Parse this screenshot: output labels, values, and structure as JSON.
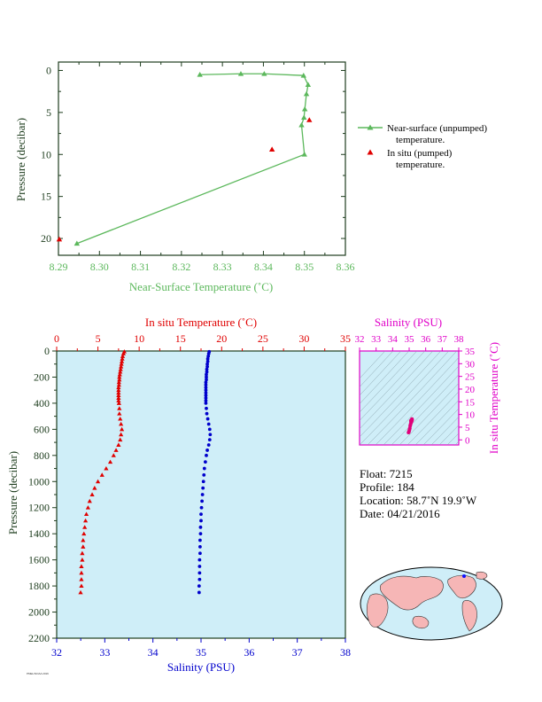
{
  "chart_data": [
    {
      "type": "line",
      "xlabel": "Near-Surface Temperature (˚C)",
      "ylabel": "Pressure (decibar)",
      "xlim": [
        8.29,
        8.36
      ],
      "ylim": [
        22,
        -1
      ],
      "xticks": [
        "8.29",
        "8.30",
        "8.31",
        "8.32",
        "8.33",
        "8.34",
        "8.35",
        "8.36"
      ],
      "yticks": [
        "0",
        "5",
        "10",
        "15",
        "20"
      ],
      "legend": [
        {
          "line1": "Near-surface (unpumped)",
          "line2": "temperature.",
          "color": "#5cb85c",
          "marker": "triangle"
        },
        {
          "line1": "In situ (pumped)",
          "line2": "temperature.",
          "color": "#e00000",
          "marker": "triangle"
        }
      ],
      "series": [
        {
          "name": "Near-surface (unpumped) temperature.",
          "color": "#5cb85c",
          "x": [
            8.3245,
            8.3345,
            8.3402,
            8.3498,
            8.3509,
            8.3505,
            8.3501,
            8.3499,
            8.3493,
            8.35,
            8.2945
          ],
          "y": [
            0.5,
            0.4,
            0.4,
            0.6,
            1.7,
            2.8,
            4.6,
            5.6,
            6.5,
            10.0,
            20.6
          ]
        },
        {
          "name": "In situ (pumped) temperature.",
          "color": "#e00000",
          "x": [
            8.3512,
            8.3421,
            8.2902
          ],
          "y": [
            5.9,
            9.4,
            20.1
          ]
        }
      ]
    },
    {
      "type": "scatter",
      "title_top": "In situ Temperature (˚C)",
      "xlabel": "Salinity (PSU)",
      "ylabel": "Pressure (decibar)",
      "temp_lim": [
        0,
        35
      ],
      "sal_lim": [
        32,
        38
      ],
      "ylim": [
        2200,
        0
      ],
      "temp_ticks": [
        "0",
        "5",
        "10",
        "15",
        "20",
        "25",
        "30",
        "35"
      ],
      "sal_ticks": [
        "32",
        "33",
        "34",
        "35",
        "36",
        "37",
        "38"
      ],
      "pressure_ticks": [
        "0",
        "200",
        "400",
        "600",
        "800",
        "1000",
        "1200",
        "1400",
        "1600",
        "1800",
        "2000",
        "2200"
      ],
      "background": "#cfeef8",
      "temperature": {
        "color": "#e00000",
        "pressure": [
          5,
          20,
          40,
          60,
          80,
          100,
          120,
          140,
          160,
          180,
          200,
          220,
          240,
          260,
          280,
          300,
          320,
          340,
          360,
          380,
          400,
          440,
          480,
          520,
          560,
          600,
          640,
          680,
          720,
          760,
          800,
          850,
          900,
          950,
          1000,
          1050,
          1100,
          1150,
          1200,
          1250,
          1300,
          1350,
          1400,
          1450,
          1500,
          1550,
          1600,
          1650,
          1700,
          1750,
          1800,
          1850
        ],
        "values": [
          8.2,
          8.1,
          8.0,
          7.95,
          7.9,
          7.85,
          7.8,
          7.75,
          7.7,
          7.65,
          7.6,
          7.6,
          7.55,
          7.55,
          7.5,
          7.5,
          7.5,
          7.5,
          7.5,
          7.5,
          7.55,
          7.6,
          7.6,
          7.7,
          7.8,
          7.9,
          7.8,
          7.7,
          7.5,
          7.2,
          6.9,
          6.5,
          6.0,
          5.5,
          5.0,
          4.6,
          4.3,
          4.0,
          3.8,
          3.6,
          3.5,
          3.4,
          3.3,
          3.2,
          3.2,
          3.1,
          3.1,
          3.0,
          3.0,
          3.0,
          3.0,
          2.9
        ]
      },
      "salinity": {
        "color": "#0000cc",
        "pressure": [
          5,
          20,
          40,
          60,
          80,
          100,
          120,
          140,
          160,
          180,
          200,
          220,
          240,
          260,
          280,
          300,
          320,
          340,
          360,
          380,
          400,
          440,
          480,
          520,
          560,
          600,
          640,
          680,
          720,
          760,
          800,
          850,
          900,
          950,
          1000,
          1050,
          1100,
          1150,
          1200,
          1250,
          1300,
          1350,
          1400,
          1450,
          1500,
          1550,
          1600,
          1650,
          1700,
          1750,
          1800,
          1850
        ],
        "values": [
          35.17,
          35.16,
          35.15,
          35.14,
          35.14,
          35.13,
          35.13,
          35.12,
          35.12,
          35.11,
          35.11,
          35.11,
          35.1,
          35.1,
          35.1,
          35.1,
          35.1,
          35.1,
          35.1,
          35.1,
          35.1,
          35.11,
          35.12,
          35.14,
          35.16,
          35.18,
          35.19,
          35.18,
          35.16,
          35.13,
          35.11,
          35.09,
          35.07,
          35.06,
          35.05,
          35.04,
          35.03,
          35.02,
          35.01,
          35.0,
          35.0,
          34.99,
          34.99,
          34.98,
          34.98,
          34.98,
          34.97,
          34.97,
          34.97,
          34.97,
          34.96,
          34.96
        ]
      }
    },
    {
      "type": "scatter",
      "title": "Salinity (PSU)",
      "ylabel": "In situ Temperature (˚C)",
      "sal_lim": [
        32,
        38
      ],
      "temp_lim": [
        -2,
        35
      ],
      "sal_ticks": [
        "32",
        "33",
        "34",
        "35",
        "36",
        "37",
        "38"
      ],
      "temp_ticks": [
        "0",
        "5",
        "10",
        "15",
        "20",
        "25",
        "30",
        "35"
      ],
      "color": "#e0007a",
      "points": {
        "salinity": [
          34.96,
          34.98,
          35.0,
          35.02,
          35.04,
          35.06,
          35.08,
          35.1,
          35.12,
          35.14,
          35.16,
          35.18,
          35.16,
          35.12,
          35.1,
          35.11,
          35.13,
          35.15,
          35.17
        ],
        "temperature": [
          2.9,
          3.1,
          3.5,
          4.0,
          4.6,
          5.5,
          6.0,
          6.5,
          6.9,
          7.2,
          7.5,
          7.9,
          7.8,
          7.6,
          7.5,
          7.55,
          7.7,
          7.9,
          8.2
        ]
      }
    }
  ],
  "info": {
    "float": "Float:  7215",
    "profile": "Profile:  184",
    "location": "Location:  58.7˚N  19.9˚W",
    "date": "Date:  04/21/2016"
  },
  "footer": "PMEL/NOAA 2016",
  "colors": {
    "green": "#5cb85c",
    "red": "#e00000",
    "blue": "#0000cc",
    "magenta": "#e000c8",
    "axis_dark": "#1e3d1e"
  }
}
